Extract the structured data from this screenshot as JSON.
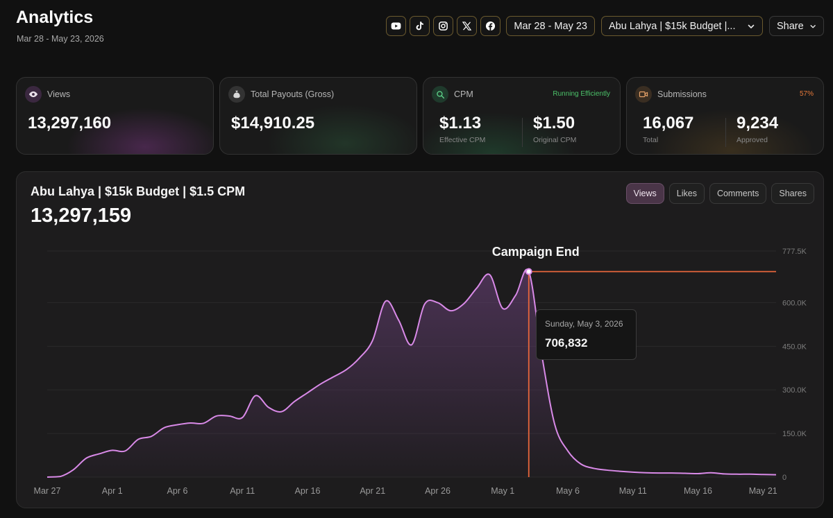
{
  "header": {
    "title": "Analytics",
    "subtitle": "Mar 28 - May 23, 2026"
  },
  "toolbar": {
    "platform_icons": [
      "youtube-icon",
      "tiktok-icon",
      "instagram-icon",
      "x-icon",
      "facebook-icon"
    ],
    "date_range": "Mar 28 - May 23",
    "campaign_select": "Abu Lahya | $15k Budget |...",
    "share_label": "Share"
  },
  "cards": {
    "views": {
      "label": "Views",
      "value": "13,297,160"
    },
    "payouts": {
      "label": "Total Payouts (Gross)",
      "value": "$14,910.25"
    },
    "cpm": {
      "label": "CPM",
      "badge": "Running Efficiently",
      "effective_value": "$1.13",
      "effective_label": "Effective CPM",
      "original_value": "$1.50",
      "original_label": "Original CPM"
    },
    "submissions": {
      "label": "Submissions",
      "badge": "57%",
      "total_value": "16,067",
      "total_label": "Total",
      "approved_value": "9,234",
      "approved_label": "Approved"
    }
  },
  "chart_panel": {
    "title": "Abu Lahya | $15k Budget | $1.5 CPM",
    "total": "13,297,159",
    "tabs": [
      "Views",
      "Likes",
      "Comments",
      "Shares"
    ],
    "active_tab": "Views",
    "annotation": "Campaign End",
    "tooltip": {
      "date": "Sunday, May 3, 2026",
      "value": "706,832"
    }
  },
  "colors": {
    "line": "#d98ae8",
    "area_top": "#5a3a66",
    "campaign_marker": "#e8663c",
    "badge_green": "#4cc36a",
    "badge_orange": "#e87a3a",
    "button_border": "#6b5a2e"
  },
  "chart_data": {
    "type": "area",
    "series_name": "Views",
    "x": [
      "Mar 27",
      "Mar 28",
      "Mar 29",
      "Mar 30",
      "Mar 31",
      "Apr 1",
      "Apr 2",
      "Apr 3",
      "Apr 4",
      "Apr 5",
      "Apr 6",
      "Apr 7",
      "Apr 8",
      "Apr 9",
      "Apr 10",
      "Apr 11",
      "Apr 12",
      "Apr 13",
      "Apr 14",
      "Apr 15",
      "Apr 16",
      "Apr 17",
      "Apr 18",
      "Apr 19",
      "Apr 20",
      "Apr 21",
      "Apr 22",
      "Apr 23",
      "Apr 24",
      "Apr 25",
      "Apr 26",
      "Apr 27",
      "Apr 28",
      "Apr 29",
      "Apr 30",
      "May 1",
      "May 2",
      "May 3",
      "May 4",
      "May 5",
      "May 6",
      "May 7",
      "May 8",
      "May 9",
      "May 10",
      "May 11",
      "May 12",
      "May 13",
      "May 14",
      "May 15",
      "May 16",
      "May 17",
      "May 18",
      "May 19",
      "May 20",
      "May 21",
      "May 22"
    ],
    "values": [
      0,
      2000,
      25000,
      65000,
      80000,
      92000,
      90000,
      130000,
      140000,
      170000,
      180000,
      186000,
      185000,
      210000,
      210000,
      205000,
      280000,
      240000,
      225000,
      260000,
      290000,
      320000,
      345000,
      370000,
      410000,
      470000,
      605000,
      540000,
      455000,
      595000,
      600000,
      572000,
      596000,
      650000,
      696000,
      580000,
      626000,
      706832,
      420000,
      180000,
      90000,
      45000,
      30000,
      24000,
      20000,
      17000,
      15000,
      14000,
      14000,
      13000,
      12000,
      15000,
      11000,
      10000,
      10000,
      9000,
      8000
    ],
    "x_tick_labels": [
      "Mar 27",
      "Apr 1",
      "Apr 6",
      "Apr 11",
      "Apr 16",
      "Apr 21",
      "Apr 26",
      "May 1",
      "May 6",
      "May 11",
      "May 16",
      "May 21"
    ],
    "y_tick_labels": [
      "0",
      "150.0K",
      "300.0K",
      "450.0K",
      "600.0K",
      "777.5K"
    ],
    "ylim": [
      0,
      777500
    ],
    "y_axis_side": "right",
    "grid": true,
    "annotation": {
      "label": "Campaign End",
      "x": "May 3",
      "value": 706832
    },
    "reference_line": {
      "from": "May 3",
      "to": "May 22",
      "value": 706832
    }
  }
}
